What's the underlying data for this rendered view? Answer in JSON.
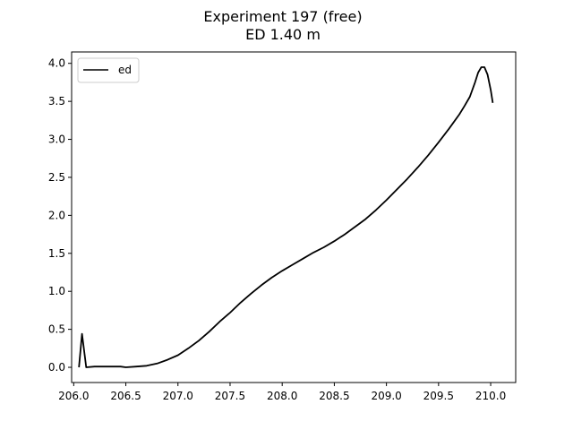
{
  "chart_data": {
    "type": "line",
    "title": "Experiment 197 (free)",
    "subtitle": "ED 1.40 m",
    "xlabel": "",
    "ylabel": "",
    "xlim": [
      205.98,
      210.24
    ],
    "ylim": [
      -0.2,
      4.15
    ],
    "xticks": [
      206.0,
      206.5,
      207.0,
      207.5,
      208.0,
      208.5,
      209.0,
      209.5,
      210.0
    ],
    "xtick_labels": [
      "206.0",
      "206.5",
      "207.0",
      "207.5",
      "208.0",
      "208.5",
      "209.0",
      "209.5",
      "210.0"
    ],
    "yticks": [
      0.0,
      0.5,
      1.0,
      1.5,
      2.0,
      2.5,
      3.0,
      3.5,
      4.0
    ],
    "ytick_labels": [
      "0.0",
      "0.5",
      "1.0",
      "1.5",
      "2.0",
      "2.5",
      "3.0",
      "3.5",
      "4.0"
    ],
    "grid": false,
    "legend": {
      "placement": "top-left"
    },
    "series": [
      {
        "name": "ed",
        "color": "#000000",
        "x": [
          206.05,
          206.08,
          206.12,
          206.2,
          206.3,
          206.4,
          206.45,
          206.5,
          206.6,
          206.7,
          206.8,
          206.9,
          207.0,
          207.1,
          207.2,
          207.3,
          207.4,
          207.5,
          207.6,
          207.7,
          207.8,
          207.9,
          208.0,
          208.1,
          208.2,
          208.3,
          208.4,
          208.5,
          208.6,
          208.7,
          208.8,
          208.9,
          209.0,
          209.1,
          209.2,
          209.3,
          209.4,
          209.5,
          209.6,
          209.7,
          209.75,
          209.8,
          209.85,
          209.88,
          209.91,
          209.94,
          209.97,
          210.0,
          210.02
        ],
        "y": [
          0.0,
          0.44,
          0.0,
          0.01,
          0.01,
          0.01,
          0.01,
          0.0,
          0.01,
          0.02,
          0.05,
          0.1,
          0.16,
          0.25,
          0.35,
          0.47,
          0.6,
          0.72,
          0.85,
          0.97,
          1.08,
          1.18,
          1.27,
          1.35,
          1.43,
          1.51,
          1.58,
          1.66,
          1.75,
          1.85,
          1.95,
          2.07,
          2.2,
          2.34,
          2.48,
          2.63,
          2.79,
          2.96,
          3.14,
          3.33,
          3.44,
          3.56,
          3.75,
          3.88,
          3.95,
          3.95,
          3.85,
          3.65,
          3.48
        ]
      }
    ]
  }
}
